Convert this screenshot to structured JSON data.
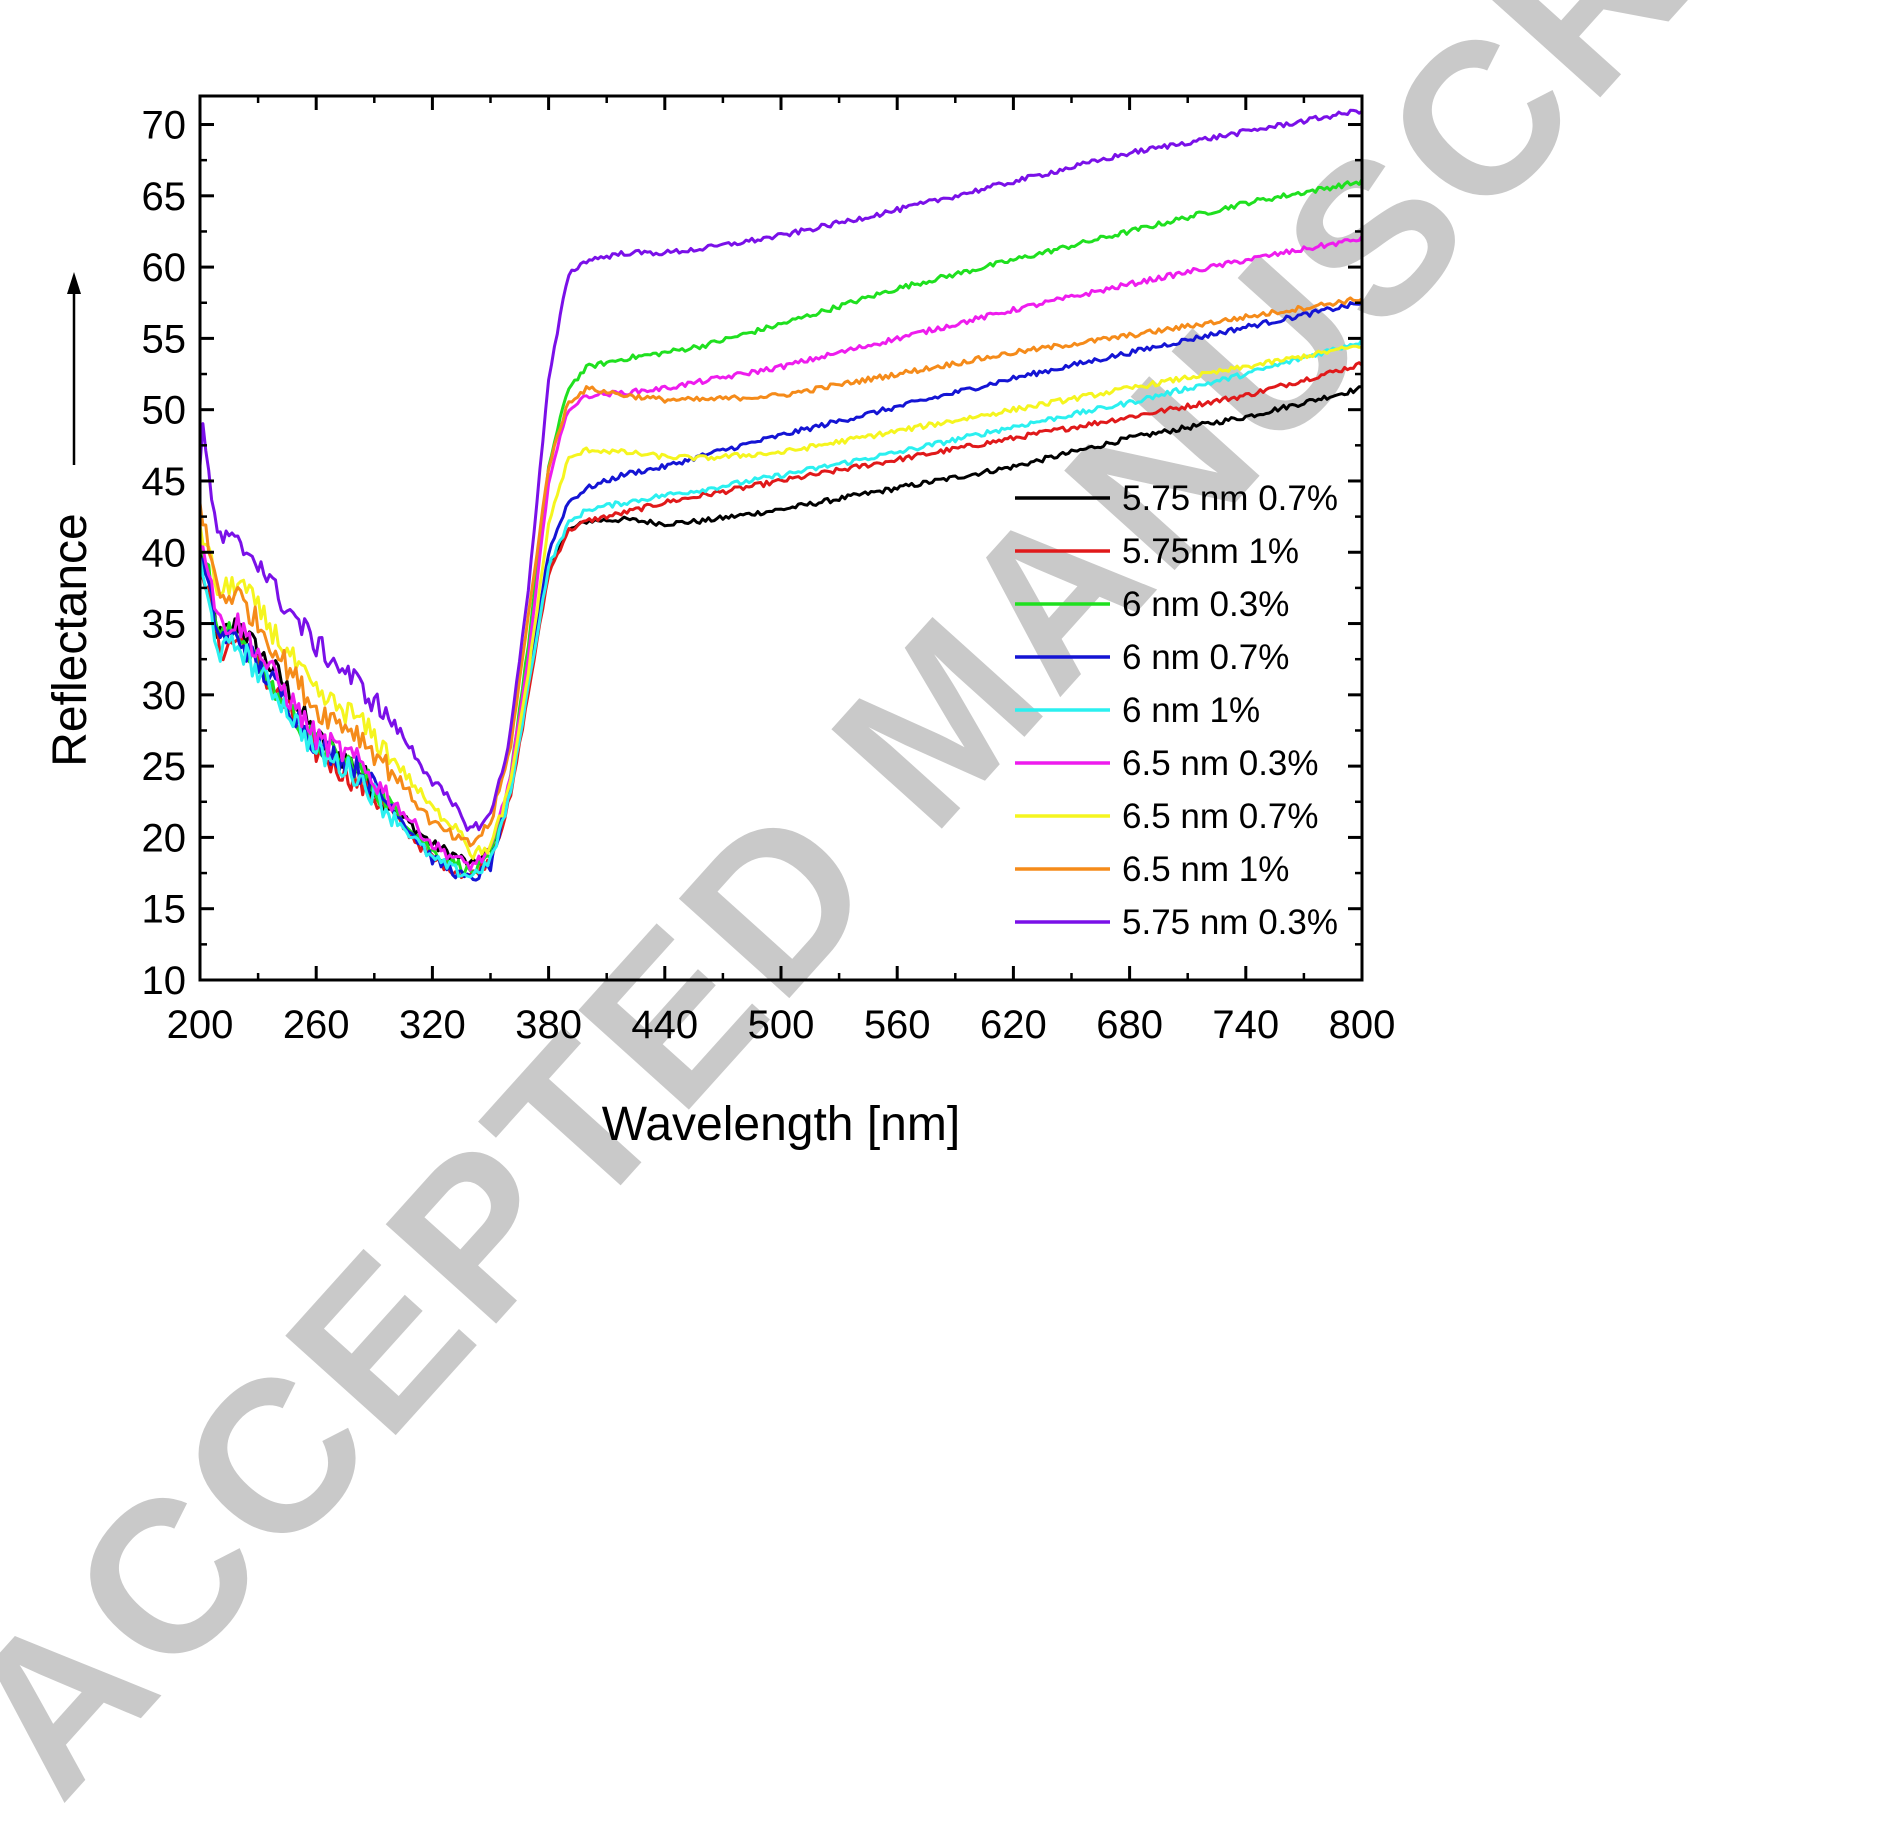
{
  "watermark": "ACCEPTED MANUSCRIPT",
  "chart_data": {
    "type": "line",
    "xlabel": "Wavelength [nm]",
    "ylabel": "Reflectance",
    "xlim": [
      200,
      800
    ],
    "ylim": [
      10,
      72
    ],
    "xticks": [
      200,
      260,
      320,
      380,
      440,
      500,
      560,
      620,
      680,
      740,
      800
    ],
    "yticks": [
      10,
      15,
      20,
      25,
      30,
      35,
      40,
      45,
      50,
      55,
      60,
      65,
      70
    ],
    "grid": false,
    "legend_position": "right",
    "series": [
      {
        "name": "5.75 nm 0.7%",
        "color": "#000000",
        "x": [
          200,
          210,
          220,
          230,
          240,
          260,
          280,
          300,
          320,
          335,
          340,
          350,
          360,
          370,
          380,
          390,
          400,
          420,
          440,
          460,
          500,
          560,
          620,
          680,
          740,
          800
        ],
        "y": [
          40,
          34,
          35,
          33,
          31.5,
          27,
          25,
          22,
          19.5,
          18.5,
          18,
          19,
          23,
          31,
          39,
          41.5,
          42.2,
          42.3,
          42,
          42.2,
          43,
          44.5,
          46,
          48,
          49.5,
          51.5
        ]
      },
      {
        "name": "5.75nm 1%",
        "color": "#e0191a",
        "x": [
          200,
          210,
          220,
          230,
          240,
          260,
          280,
          300,
          320,
          335,
          340,
          350,
          360,
          370,
          380,
          390,
          400,
          420,
          440,
          460,
          500,
          560,
          620,
          680,
          740,
          800
        ],
        "y": [
          40,
          33,
          34,
          32,
          30,
          26,
          24,
          21.5,
          18.5,
          17.5,
          17.3,
          18.5,
          22.5,
          30.5,
          38.5,
          41.5,
          42.2,
          42.8,
          43.5,
          44,
          45,
          46.5,
          48,
          49.5,
          51,
          53.2
        ]
      },
      {
        "name": "6 nm 0.3%",
        "color": "#1fe01f",
        "x": [
          200,
          210,
          220,
          230,
          240,
          260,
          280,
          300,
          320,
          335,
          340,
          350,
          360,
          370,
          380,
          390,
          400,
          420,
          440,
          460,
          500,
          560,
          620,
          680,
          740,
          800
        ],
        "y": [
          42,
          34,
          34.5,
          32,
          30,
          26.5,
          25,
          22,
          19,
          18,
          17.5,
          18.5,
          24,
          34,
          46,
          51.5,
          53,
          53.6,
          54,
          54.5,
          56,
          58.5,
          60.5,
          62.5,
          64.5,
          66
        ]
      },
      {
        "name": "6 nm 0.7%",
        "color": "#1414d4",
        "x": [
          200,
          210,
          220,
          230,
          240,
          260,
          280,
          300,
          320,
          335,
          340,
          350,
          360,
          370,
          380,
          390,
          400,
          420,
          440,
          460,
          500,
          560,
          620,
          680,
          740,
          800
        ],
        "y": [
          40,
          34,
          34,
          32,
          30.5,
          26.5,
          25,
          22,
          18.5,
          17.3,
          17,
          18,
          23,
          31.5,
          40,
          43.5,
          44.5,
          45.5,
          46,
          46.8,
          48.2,
          50.2,
          52.2,
          54,
          55.8,
          57.5
        ]
      },
      {
        "name": "6 nm 1%",
        "color": "#2bf0f0",
        "x": [
          200,
          210,
          220,
          230,
          240,
          260,
          280,
          300,
          320,
          335,
          340,
          350,
          360,
          370,
          380,
          390,
          400,
          420,
          440,
          460,
          500,
          560,
          620,
          680,
          740,
          800
        ],
        "y": [
          39,
          33,
          33.5,
          31.5,
          30,
          26,
          24.5,
          21.5,
          18.5,
          17.5,
          17.3,
          18.3,
          22.8,
          31,
          39,
          42,
          43,
          43.5,
          44,
          44.4,
          45.4,
          47,
          48.8,
          50.5,
          52.5,
          54.8
        ]
      },
      {
        "name": "6.5 nm 0.3%",
        "color": "#ee1cee",
        "x": [
          200,
          210,
          220,
          230,
          240,
          260,
          280,
          300,
          320,
          335,
          340,
          350,
          360,
          370,
          380,
          390,
          400,
          420,
          440,
          460,
          500,
          560,
          620,
          680,
          740,
          800
        ],
        "y": [
          42,
          35,
          35,
          33,
          31,
          27,
          25.5,
          22.5,
          19.5,
          18.3,
          18,
          19,
          24,
          33,
          45,
          50,
          51,
          51.2,
          51.5,
          52,
          53,
          55,
          57,
          58.8,
          60.5,
          62
        ]
      },
      {
        "name": "6.5 nm 0.7%",
        "color": "#f5f51f",
        "x": [
          200,
          210,
          220,
          230,
          240,
          260,
          280,
          300,
          320,
          335,
          340,
          350,
          360,
          370,
          380,
          390,
          400,
          420,
          440,
          460,
          500,
          560,
          620,
          680,
          740,
          800
        ],
        "y": [
          42,
          37,
          38,
          36,
          34,
          30,
          28.5,
          25.5,
          22,
          20.5,
          18.8,
          19.3,
          23.5,
          32,
          42,
          46.5,
          47.2,
          47,
          46.7,
          46.6,
          47,
          48.5,
          50,
          51.5,
          53,
          54.5
        ]
      },
      {
        "name": "6.5 nm 1%",
        "color": "#f58b1a",
        "x": [
          200,
          210,
          220,
          230,
          240,
          260,
          280,
          300,
          320,
          335,
          340,
          350,
          360,
          370,
          380,
          390,
          400,
          420,
          440,
          460,
          500,
          560,
          620,
          680,
          740,
          800
        ],
        "y": [
          43,
          37,
          37,
          35,
          33,
          29,
          27.5,
          24.5,
          21,
          19.7,
          19.5,
          21,
          26,
          36,
          46,
          50.5,
          51.5,
          51,
          50.7,
          50.7,
          51,
          52.5,
          54,
          55.2,
          56.5,
          57.8
        ]
      },
      {
        "name": "5.75 nm 0.3%",
        "color": "#7a10e8",
        "x": [
          200,
          202,
          205,
          210,
          220,
          230,
          240,
          260,
          280,
          300,
          320,
          335,
          340,
          350,
          360,
          370,
          380,
          390,
          400,
          420,
          440,
          460,
          500,
          560,
          620,
          680,
          740,
          800
        ],
        "y": [
          46,
          49.5,
          44,
          41,
          40.5,
          39.5,
          37,
          33.5,
          31,
          28,
          24,
          21.5,
          20.5,
          21.5,
          27,
          38,
          52,
          59.5,
          60.5,
          61,
          61,
          61.3,
          62.2,
          64,
          66,
          68,
          69.5,
          71
        ]
      }
    ]
  }
}
